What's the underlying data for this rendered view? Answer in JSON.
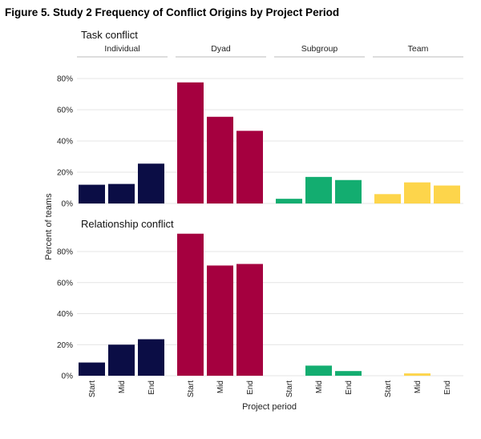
{
  "figure_title": "Figure 5.  Study 2 Frequency of Conflict Origins by Project Period",
  "colors": {
    "Individual": "#0b0d45",
    "Dyad": "#a5003f",
    "Subgroup": "#13ad70",
    "Team": "#fdd54b",
    "grid": "#e4e4e4",
    "strip_line": "#bbbbbb",
    "text": "#222222"
  },
  "chart_data": {
    "type": "bar",
    "title": "Figure 5.  Study 2 Frequency of Conflict Origins by Project Period",
    "xlabel": "Project period",
    "ylabel": "Percent of teams",
    "ylim": [
      0,
      0.9
    ],
    "yticks": [
      0,
      0.2,
      0.4,
      0.6,
      0.8
    ],
    "ytick_labels": [
      "0%",
      "20%",
      "40%",
      "60%",
      "80%"
    ],
    "categories": [
      "Start",
      "Mid",
      "End"
    ],
    "facet_columns": [
      "Individual",
      "Dyad",
      "Subgroup",
      "Team"
    ],
    "grid": true,
    "legend": "none",
    "panels": [
      {
        "name": "Task conflict",
        "series": [
          {
            "name": "Individual",
            "values": [
              0.12,
              0.125,
              0.255
            ]
          },
          {
            "name": "Dyad",
            "values": [
              0.775,
              0.555,
              0.465
            ]
          },
          {
            "name": "Subgroup",
            "values": [
              0.03,
              0.17,
              0.15
            ]
          },
          {
            "name": "Team",
            "values": [
              0.06,
              0.135,
              0.115
            ]
          }
        ]
      },
      {
        "name": "Relationship conflict",
        "series": [
          {
            "name": "Individual",
            "values": [
              0.085,
              0.2,
              0.235
            ]
          },
          {
            "name": "Dyad",
            "values": [
              0.915,
              0.71,
              0.72
            ]
          },
          {
            "name": "Subgroup",
            "values": [
              0.0,
              0.065,
              0.03
            ]
          },
          {
            "name": "Team",
            "values": [
              0.0,
              0.015,
              0.0
            ]
          }
        ]
      }
    ]
  }
}
